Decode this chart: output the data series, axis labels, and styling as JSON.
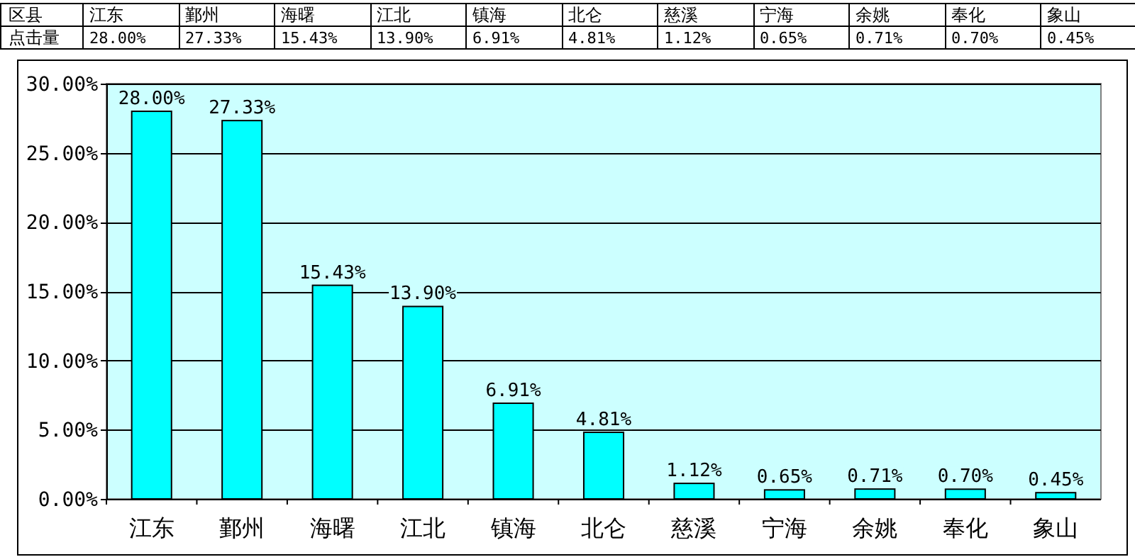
{
  "chart_data": {
    "type": "bar",
    "xlabel": "区县",
    "ylabel": "点击量",
    "categories": [
      "江东",
      "鄞州",
      "海曙",
      "江北",
      "镇海",
      "北仑",
      "慈溪",
      "宁海",
      "余姚",
      "奉化",
      "象山"
    ],
    "values": [
      28.0,
      27.33,
      15.43,
      13.9,
      6.91,
      4.81,
      1.12,
      0.65,
      0.71,
      0.7,
      0.45
    ],
    "value_labels": [
      "28.00%",
      "27.33%",
      "15.43%",
      "13.90%",
      "6.91%",
      "4.81%",
      "1.12%",
      "0.65%",
      "0.71%",
      "0.70%",
      "0.45%"
    ],
    "color": "#00ffff",
    "ylim": [
      0,
      30
    ],
    "yticks": [
      {
        "value": 0,
        "label": "0.00%"
      },
      {
        "value": 5,
        "label": "5.00%"
      },
      {
        "value": 10,
        "label": "10.00%"
      },
      {
        "value": 15,
        "label": "15.00%"
      },
      {
        "value": 20,
        "label": "20.00%"
      },
      {
        "value": 25,
        "label": "25.00%"
      },
      {
        "value": 30,
        "label": "30.00%"
      }
    ],
    "grid": "y"
  }
}
